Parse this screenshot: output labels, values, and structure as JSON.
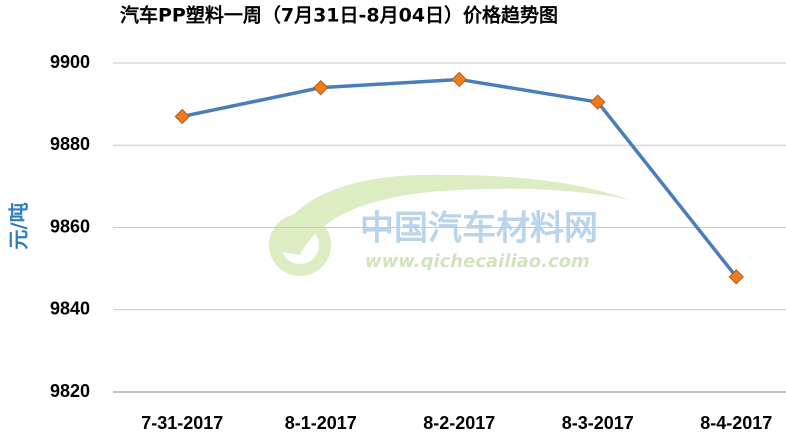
{
  "chart_data": {
    "type": "line",
    "title": "汽车PP塑料一周（7月31日-8月04日）价格趋势图",
    "y_label": "元/吨",
    "categories": [
      "7-31-2017",
      "8-1-2017",
      "8-2-2017",
      "8-3-2017",
      "8-4-2017"
    ],
    "series": [
      {
        "name": "PP",
        "color": "#4a7ebb",
        "marker_color": "#f07a1e",
        "values": [
          9887,
          9894,
          9896,
          9890.5,
          9848
        ]
      }
    ],
    "ylim": [
      9820,
      9900
    ],
    "yticks": [
      9820,
      9840,
      9860,
      9880,
      9900
    ],
    "grid": true,
    "watermark": {
      "name": "中国汽车材料网",
      "url": "www.qichecailiao.com"
    }
  }
}
